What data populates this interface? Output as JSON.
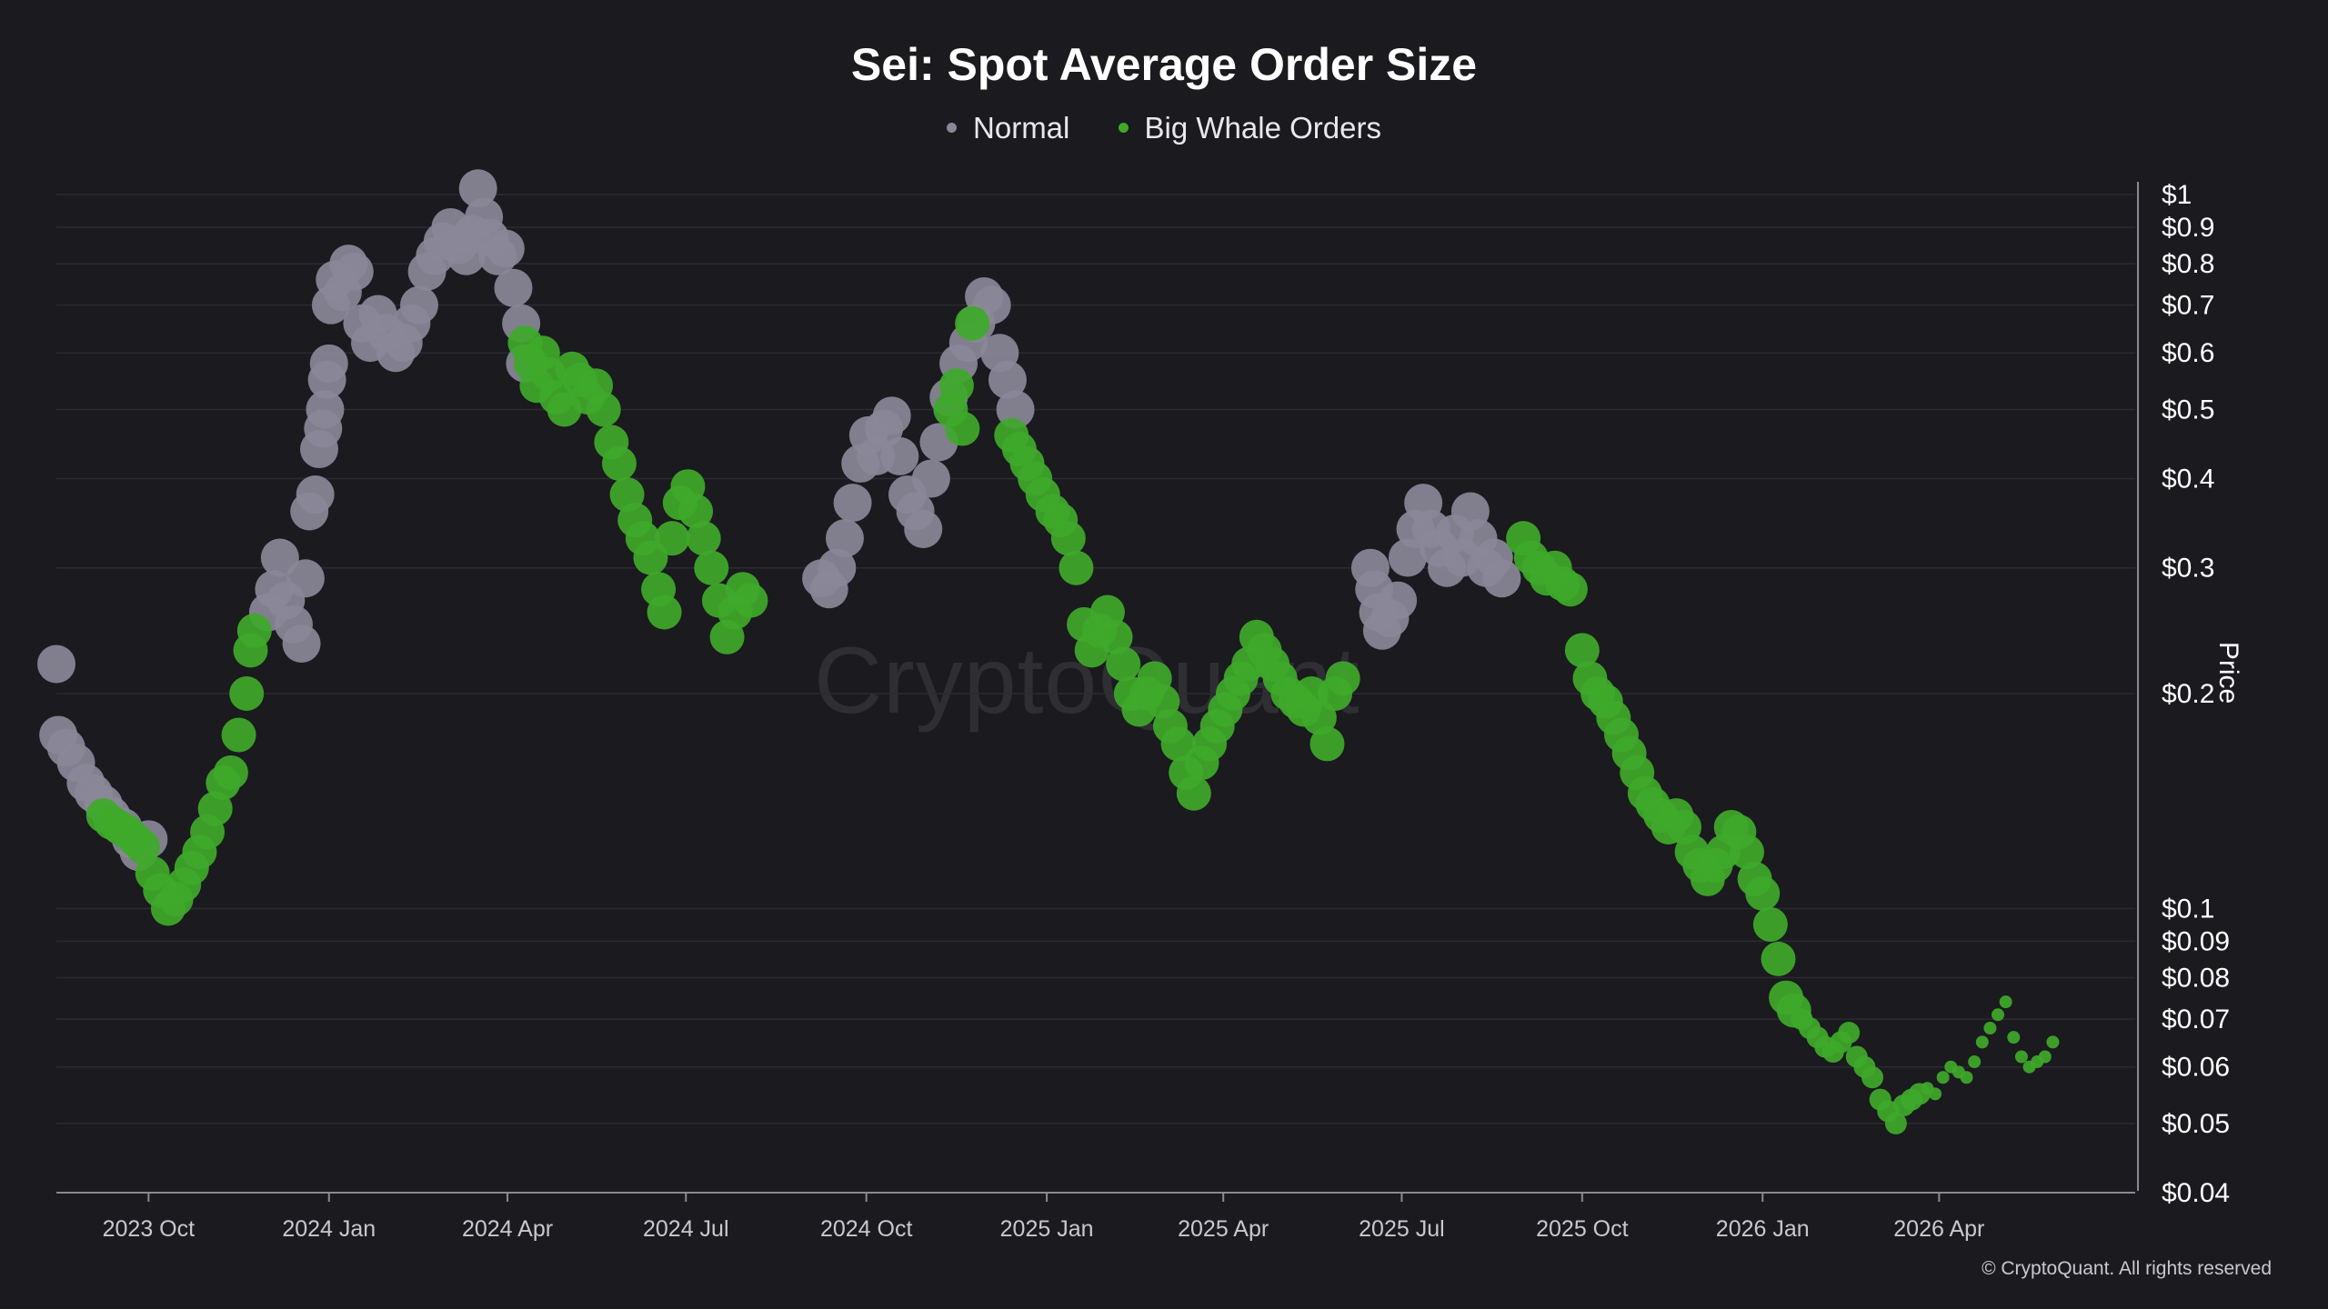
{
  "chart_data": {
    "type": "scatter",
    "title": "Sei: Spot Average Order Size",
    "ylabel": "Price",
    "yscale": "log",
    "ylim": [
      0.04,
      1.0
    ],
    "xlim": [
      "2023-08-15",
      "2026-07-10"
    ],
    "x_ticks": [
      "2023 Oct",
      "2024 Jan",
      "2024 Apr",
      "2024 Jul",
      "2024 Oct",
      "2025 Jan",
      "2025 Apr",
      "2025 Jul",
      "2025 Oct",
      "2026 Jan",
      "2026 Apr"
    ],
    "x_tick_dates": [
      "2023-10-01",
      "2024-01-01",
      "2024-04-01",
      "2024-07-01",
      "2024-10-01",
      "2025-01-01",
      "2025-04-01",
      "2025-07-01",
      "2025-10-01",
      "2026-01-01",
      "2026-04-01"
    ],
    "y_ticks": [
      "$1",
      "$0.9",
      "$0.8",
      "$0.7",
      "$0.6",
      "$0.5",
      "$0.4",
      "$0.3",
      "$0.2",
      "$0.1",
      "$0.09",
      "$0.08",
      "$0.07",
      "$0.06",
      "$0.05",
      "$0.04"
    ],
    "y_tick_values": [
      1,
      0.9,
      0.8,
      0.7,
      0.6,
      0.5,
      0.4,
      0.3,
      0.2,
      0.1,
      0.09,
      0.08,
      0.07,
      0.06,
      0.05,
      0.04
    ],
    "grid": "horizontal",
    "legend_position": "top-center",
    "series": [
      {
        "name": "Normal",
        "color": "#8a8898",
        "points": [
          [
            "2023-08-15",
            0.22
          ],
          [
            "2023-08-16",
            0.175
          ],
          [
            "2023-08-20",
            0.168
          ],
          [
            "2023-08-25",
            0.16
          ],
          [
            "2023-08-30",
            0.15
          ],
          [
            "2023-09-03",
            0.145
          ],
          [
            "2023-09-08",
            0.14
          ],
          [
            "2023-09-12",
            0.135
          ],
          [
            "2023-09-18",
            0.13
          ],
          [
            "2023-09-22",
            0.125
          ],
          [
            "2023-09-26",
            0.12
          ],
          [
            "2023-10-01",
            0.125
          ],
          [
            "2023-12-01",
            0.26
          ],
          [
            "2023-12-04",
            0.28
          ],
          [
            "2023-12-07",
            0.31
          ],
          [
            "2023-12-10",
            0.27
          ],
          [
            "2023-12-14",
            0.25
          ],
          [
            "2023-12-18",
            0.235
          ],
          [
            "2023-12-20",
            0.29
          ],
          [
            "2023-12-22",
            0.36
          ],
          [
            "2023-12-25",
            0.38
          ],
          [
            "2023-12-27",
            0.44
          ],
          [
            "2023-12-29",
            0.47
          ],
          [
            "2023-12-30",
            0.5
          ],
          [
            "2023-12-31",
            0.55
          ],
          [
            "2024-01-01",
            0.58
          ],
          [
            "2024-01-02",
            0.7
          ],
          [
            "2024-01-04",
            0.76
          ],
          [
            "2024-01-08",
            0.73
          ],
          [
            "2024-01-11",
            0.8
          ],
          [
            "2024-01-14",
            0.78
          ],
          [
            "2024-01-18",
            0.66
          ],
          [
            "2024-01-22",
            0.62
          ],
          [
            "2024-01-26",
            0.68
          ],
          [
            "2024-01-30",
            0.64
          ],
          [
            "2024-02-04",
            0.6
          ],
          [
            "2024-02-08",
            0.62
          ],
          [
            "2024-02-12",
            0.66
          ],
          [
            "2024-02-16",
            0.7
          ],
          [
            "2024-02-20",
            0.78
          ],
          [
            "2024-02-24",
            0.82
          ],
          [
            "2024-02-28",
            0.86
          ],
          [
            "2024-03-03",
            0.9
          ],
          [
            "2024-03-07",
            0.85
          ],
          [
            "2024-03-11",
            0.82
          ],
          [
            "2024-03-14",
            0.88
          ],
          [
            "2024-03-17",
            1.02
          ],
          [
            "2024-03-20",
            0.93
          ],
          [
            "2024-03-23",
            0.87
          ],
          [
            "2024-03-27",
            0.82
          ],
          [
            "2024-03-31",
            0.84
          ],
          [
            "2024-04-04",
            0.74
          ],
          [
            "2024-04-08",
            0.66
          ],
          [
            "2024-04-10",
            0.58
          ],
          [
            "2024-09-08",
            0.29
          ],
          [
            "2024-09-12",
            0.28
          ],
          [
            "2024-09-16",
            0.3
          ],
          [
            "2024-09-20",
            0.33
          ],
          [
            "2024-09-24",
            0.37
          ],
          [
            "2024-09-28",
            0.42
          ],
          [
            "2024-10-02",
            0.46
          ],
          [
            "2024-10-06",
            0.43
          ],
          [
            "2024-10-10",
            0.47
          ],
          [
            "2024-10-14",
            0.49
          ],
          [
            "2024-10-18",
            0.43
          ],
          [
            "2024-10-22",
            0.38
          ],
          [
            "2024-10-26",
            0.36
          ],
          [
            "2024-10-30",
            0.34
          ],
          [
            "2024-11-03",
            0.4
          ],
          [
            "2024-11-07",
            0.45
          ],
          [
            "2024-11-12",
            0.52
          ],
          [
            "2024-11-17",
            0.58
          ],
          [
            "2024-11-22",
            0.62
          ],
          [
            "2024-11-26",
            0.66
          ],
          [
            "2024-11-30",
            0.72
          ],
          [
            "2024-12-04",
            0.7
          ],
          [
            "2024-12-08",
            0.6
          ],
          [
            "2024-12-12",
            0.55
          ],
          [
            "2024-12-16",
            0.5
          ],
          [
            "2025-06-15",
            0.3
          ],
          [
            "2025-06-17",
            0.28
          ],
          [
            "2025-06-19",
            0.26
          ],
          [
            "2025-06-21",
            0.245
          ],
          [
            "2025-06-25",
            0.255
          ],
          [
            "2025-06-29",
            0.27
          ],
          [
            "2025-07-04",
            0.31
          ],
          [
            "2025-07-08",
            0.34
          ],
          [
            "2025-07-12",
            0.37
          ],
          [
            "2025-07-16",
            0.34
          ],
          [
            "2025-07-20",
            0.32
          ],
          [
            "2025-07-24",
            0.3
          ],
          [
            "2025-07-28",
            0.335
          ],
          [
            "2025-08-01",
            0.31
          ],
          [
            "2025-08-05",
            0.36
          ],
          [
            "2025-08-09",
            0.33
          ],
          [
            "2025-08-13",
            0.3
          ],
          [
            "2025-08-17",
            0.31
          ],
          [
            "2025-08-21",
            0.29
          ]
        ]
      },
      {
        "name": "Big Whale Orders",
        "color": "#3fa92a",
        "points": [
          [
            "2023-09-08",
            0.135
          ],
          [
            "2023-09-12",
            0.132
          ],
          [
            "2023-09-16",
            0.13
          ],
          [
            "2023-09-20",
            0.128
          ],
          [
            "2023-09-24",
            0.125
          ],
          [
            "2023-09-28",
            0.122
          ],
          [
            "2023-10-03",
            0.112
          ],
          [
            "2023-10-07",
            0.106
          ],
          [
            "2023-10-11",
            0.1
          ],
          [
            "2023-10-15",
            0.103
          ],
          [
            "2023-10-19",
            0.108
          ],
          [
            "2023-10-23",
            0.114
          ],
          [
            "2023-10-27",
            0.12
          ],
          [
            "2023-10-31",
            0.128
          ],
          [
            "2023-11-04",
            0.138
          ],
          [
            "2023-11-08",
            0.15
          ],
          [
            "2023-11-12",
            0.155
          ],
          [
            "2023-11-16",
            0.175
          ],
          [
            "2023-11-20",
            0.2
          ],
          [
            "2023-11-22",
            0.23
          ],
          [
            "2023-11-24",
            0.245
          ],
          [
            "2024-04-10",
            0.62
          ],
          [
            "2024-04-13",
            0.58
          ],
          [
            "2024-04-16",
            0.54
          ],
          [
            "2024-04-19",
            0.6
          ],
          [
            "2024-04-22",
            0.56
          ],
          [
            "2024-04-26",
            0.52
          ],
          [
            "2024-04-30",
            0.5
          ],
          [
            "2024-05-04",
            0.57
          ],
          [
            "2024-05-08",
            0.55
          ],
          [
            "2024-05-12",
            0.52
          ],
          [
            "2024-05-16",
            0.54
          ],
          [
            "2024-05-20",
            0.5
          ],
          [
            "2024-05-24",
            0.45
          ],
          [
            "2024-05-28",
            0.42
          ],
          [
            "2024-06-01",
            0.38
          ],
          [
            "2024-06-05",
            0.35
          ],
          [
            "2024-06-09",
            0.33
          ],
          [
            "2024-06-13",
            0.31
          ],
          [
            "2024-06-17",
            0.28
          ],
          [
            "2024-06-20",
            0.26
          ],
          [
            "2024-06-24",
            0.33
          ],
          [
            "2024-06-28",
            0.37
          ],
          [
            "2024-07-02",
            0.39
          ],
          [
            "2024-07-06",
            0.36
          ],
          [
            "2024-07-10",
            0.33
          ],
          [
            "2024-07-14",
            0.3
          ],
          [
            "2024-07-18",
            0.27
          ],
          [
            "2024-07-22",
            0.24
          ],
          [
            "2024-07-26",
            0.26
          ],
          [
            "2024-07-30",
            0.28
          ],
          [
            "2024-08-03",
            0.27
          ],
          [
            "2024-11-13",
            0.5
          ],
          [
            "2024-11-16",
            0.54
          ],
          [
            "2024-11-19",
            0.47
          ],
          [
            "2024-11-24",
            0.66
          ],
          [
            "2024-12-14",
            0.46
          ],
          [
            "2024-12-18",
            0.44
          ],
          [
            "2024-12-22",
            0.42
          ],
          [
            "2024-12-26",
            0.4
          ],
          [
            "2024-12-30",
            0.38
          ],
          [
            "2025-01-04",
            0.36
          ],
          [
            "2025-01-08",
            0.35
          ],
          [
            "2025-01-12",
            0.33
          ],
          [
            "2025-01-16",
            0.3
          ],
          [
            "2025-01-20",
            0.25
          ],
          [
            "2025-01-24",
            0.23
          ],
          [
            "2025-01-28",
            0.245
          ],
          [
            "2025-02-01",
            0.26
          ],
          [
            "2025-02-05",
            0.24
          ],
          [
            "2025-02-09",
            0.22
          ],
          [
            "2025-02-13",
            0.2
          ],
          [
            "2025-02-17",
            0.19
          ],
          [
            "2025-02-21",
            0.2
          ],
          [
            "2025-02-25",
            0.21
          ],
          [
            "2025-03-01",
            0.195
          ],
          [
            "2025-03-05",
            0.18
          ],
          [
            "2025-03-09",
            0.17
          ],
          [
            "2025-03-13",
            0.155
          ],
          [
            "2025-03-17",
            0.145
          ],
          [
            "2025-03-21",
            0.16
          ],
          [
            "2025-03-25",
            0.17
          ],
          [
            "2025-03-29",
            0.18
          ],
          [
            "2025-04-02",
            0.19
          ],
          [
            "2025-04-06",
            0.2
          ],
          [
            "2025-04-10",
            0.21
          ],
          [
            "2025-04-14",
            0.22
          ],
          [
            "2025-04-18",
            0.24
          ],
          [
            "2025-04-22",
            0.23
          ],
          [
            "2025-04-26",
            0.22
          ],
          [
            "2025-04-30",
            0.21
          ],
          [
            "2025-05-04",
            0.2
          ],
          [
            "2025-05-08",
            0.195
          ],
          [
            "2025-05-12",
            0.19
          ],
          [
            "2025-05-16",
            0.2
          ],
          [
            "2025-05-20",
            0.185
          ],
          [
            "2025-05-24",
            0.17
          ],
          [
            "2025-05-28",
            0.2
          ],
          [
            "2025-06-01",
            0.21
          ],
          [
            "2025-09-01",
            0.33
          ],
          [
            "2025-09-05",
            0.31
          ],
          [
            "2025-09-09",
            0.3
          ],
          [
            "2025-09-13",
            0.29
          ],
          [
            "2025-09-17",
            0.3
          ],
          [
            "2025-09-21",
            0.285
          ],
          [
            "2025-09-25",
            0.28
          ],
          [
            "2025-10-01",
            0.23
          ],
          [
            "2025-10-05",
            0.21
          ],
          [
            "2025-10-09",
            0.2
          ],
          [
            "2025-10-13",
            0.195
          ],
          [
            "2025-10-17",
            0.185
          ],
          [
            "2025-10-21",
            0.175
          ],
          [
            "2025-10-25",
            0.165
          ],
          [
            "2025-10-29",
            0.155
          ],
          [
            "2025-11-02",
            0.145
          ],
          [
            "2025-11-06",
            0.14
          ],
          [
            "2025-11-10",
            0.135
          ],
          [
            "2025-11-14",
            0.13
          ],
          [
            "2025-11-18",
            0.135
          ],
          [
            "2025-11-22",
            0.13
          ],
          [
            "2025-11-26",
            0.12
          ],
          [
            "2025-11-30",
            0.115
          ],
          [
            "2025-12-04",
            0.11
          ],
          [
            "2025-12-08",
            0.115
          ],
          [
            "2025-12-12",
            0.12
          ],
          [
            "2025-12-16",
            0.13
          ],
          [
            "2025-12-20",
            0.128
          ],
          [
            "2025-12-24",
            0.12
          ],
          [
            "2025-12-28",
            0.11
          ],
          [
            "2026-01-01",
            0.105
          ],
          [
            "2026-01-05",
            0.095
          ],
          [
            "2026-01-09",
            0.085
          ],
          [
            "2026-01-13",
            0.075
          ],
          [
            "2026-01-17",
            0.072
          ],
          [
            "2026-01-21",
            0.07
          ],
          [
            "2026-01-25",
            0.068
          ],
          [
            "2026-01-29",
            0.066
          ],
          [
            "2026-02-02",
            0.064
          ],
          [
            "2026-02-06",
            0.063
          ],
          [
            "2026-02-10",
            0.065
          ],
          [
            "2026-02-14",
            0.067
          ],
          [
            "2026-02-18",
            0.062
          ],
          [
            "2026-02-22",
            0.06
          ],
          [
            "2026-02-26",
            0.058
          ],
          [
            "2026-03-02",
            0.054
          ],
          [
            "2026-03-06",
            0.052
          ],
          [
            "2026-03-10",
            0.05
          ],
          [
            "2026-03-14",
            0.053
          ],
          [
            "2026-03-18",
            0.054
          ],
          [
            "2026-03-22",
            0.055
          ],
          [
            "2026-03-26",
            0.056
          ],
          [
            "2026-03-30",
            0.055
          ],
          [
            "2026-04-03",
            0.058
          ],
          [
            "2026-04-07",
            0.06
          ],
          [
            "2026-04-11",
            0.059
          ],
          [
            "2026-04-15",
            0.058
          ],
          [
            "2026-04-19",
            0.061
          ],
          [
            "2026-04-23",
            0.065
          ],
          [
            "2026-04-27",
            0.068
          ],
          [
            "2026-05-01",
            0.071
          ],
          [
            "2026-05-05",
            0.074
          ],
          [
            "2026-05-09",
            0.066
          ],
          [
            "2026-05-13",
            0.062
          ],
          [
            "2026-05-17",
            0.06
          ],
          [
            "2026-05-21",
            0.061
          ],
          [
            "2026-05-25",
            0.062
          ],
          [
            "2026-05-29",
            0.065
          ]
        ]
      }
    ]
  },
  "legend": {
    "normal_label": "Normal",
    "whale_label": "Big Whale Orders"
  },
  "watermark": "CryptoQuant",
  "copyright": "© CryptoQuant. All rights reserved"
}
